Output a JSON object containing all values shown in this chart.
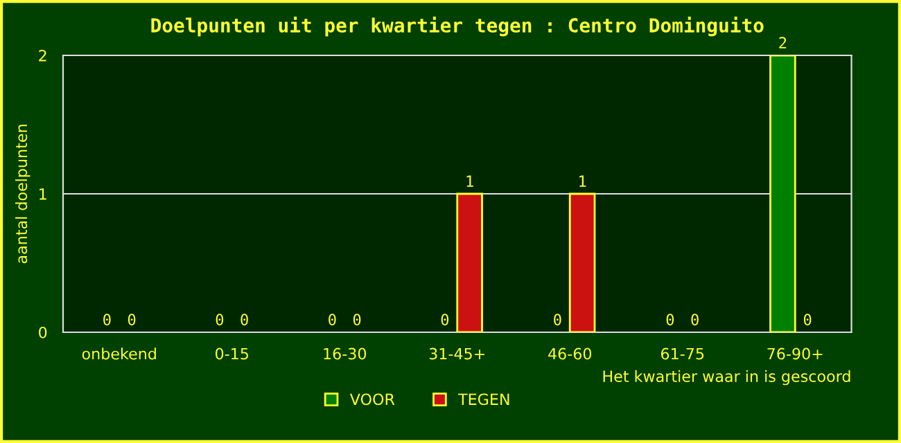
{
  "chart_data": {
    "type": "bar",
    "title": "Doelpunten uit per kwartier tegen : Centro Dominguito",
    "xlabel": "Het kwartier waar in is gescoord",
    "ylabel": "aantal doelpunten",
    "categories": [
      "onbekend",
      "0-15",
      "16-30",
      "31-45+",
      "46-60",
      "61-75",
      "76-90+"
    ],
    "series": [
      {
        "name": "VOOR",
        "color": "#008000",
        "values": [
          0,
          0,
          0,
          0,
          0,
          0,
          2
        ]
      },
      {
        "name": "TEGEN",
        "color": "#cc1111",
        "values": [
          0,
          0,
          0,
          1,
          1,
          0,
          0
        ]
      }
    ],
    "ylim": [
      0,
      2
    ],
    "yticks": [
      0,
      1,
      2
    ],
    "grid": "y",
    "legend": "bottom",
    "data_labels": true
  }
}
